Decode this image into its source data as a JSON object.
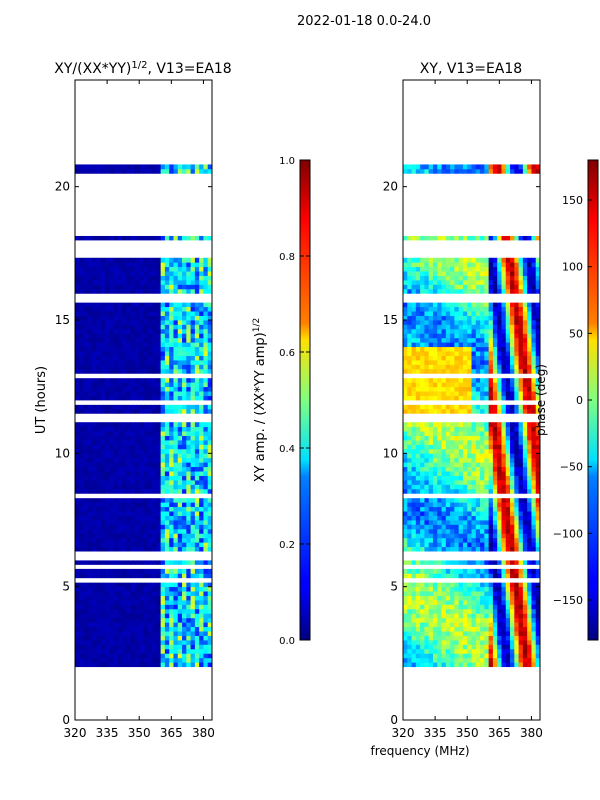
{
  "figure_title": "2022-01-18 0.0-24.0",
  "shared_xlabel": "frequency (MHz)",
  "chart_data": [
    {
      "type": "heatmap",
      "title_main": "XY/(XX*YY)",
      "title_sup": "1/2",
      "title_tail": ", V13=EA18",
      "xlabel": "",
      "ylabel": "UT (hours)",
      "x_ticks": [
        320,
        335,
        350,
        365,
        380
      ],
      "xlim": [
        320,
        384
      ],
      "y_ticks": [
        0,
        5,
        10,
        15,
        20
      ],
      "ylim": [
        0,
        24
      ],
      "data_time_range": [
        2.0,
        24.0
      ],
      "colorbar": {
        "label_main": "XY amp. / (XX*YY amp)",
        "label_sup": "1/2",
        "ticks": [
          "0.0",
          "0.2",
          "0.4",
          "0.6",
          "0.8",
          "1.0"
        ],
        "range": [
          0.0,
          1.0
        ]
      },
      "colormap": "jet"
    },
    {
      "type": "heatmap",
      "title_main": "XY, V13=EA18",
      "xlabel": "frequency (MHz)",
      "ylabel": "",
      "x_ticks": [
        320,
        335,
        350,
        365,
        380
      ],
      "xlim": [
        320,
        384
      ],
      "y_ticks": [
        0,
        5,
        10,
        15,
        20
      ],
      "ylim": [
        0,
        24
      ],
      "data_time_range": [
        2.0,
        24.0
      ],
      "colorbar": {
        "label_main": "phase (deg)",
        "ticks": [
          "150",
          "100",
          "50",
          "0",
          "−50",
          "−100",
          "−150"
        ],
        "tick_values": [
          150,
          100,
          50,
          0,
          -50,
          -100,
          -150
        ],
        "range": [
          -180,
          180
        ]
      },
      "colormap": "jet"
    }
  ],
  "flag_gaps_hours": [
    [
      1.8,
      2.0
    ],
    [
      23.3,
      24.0
    ],
    [
      20.8,
      23.3
    ],
    [
      19.4,
      20.5
    ],
    [
      18.3,
      19.3
    ],
    [
      17.4,
      18.0
    ],
    [
      5.7,
      5.9
    ],
    [
      6.1,
      6.4
    ],
    [
      11.2,
      11.5
    ]
  ],
  "colors": {
    "axis": "#000000",
    "flagged": "#ffffff",
    "background": "#ffffff"
  }
}
